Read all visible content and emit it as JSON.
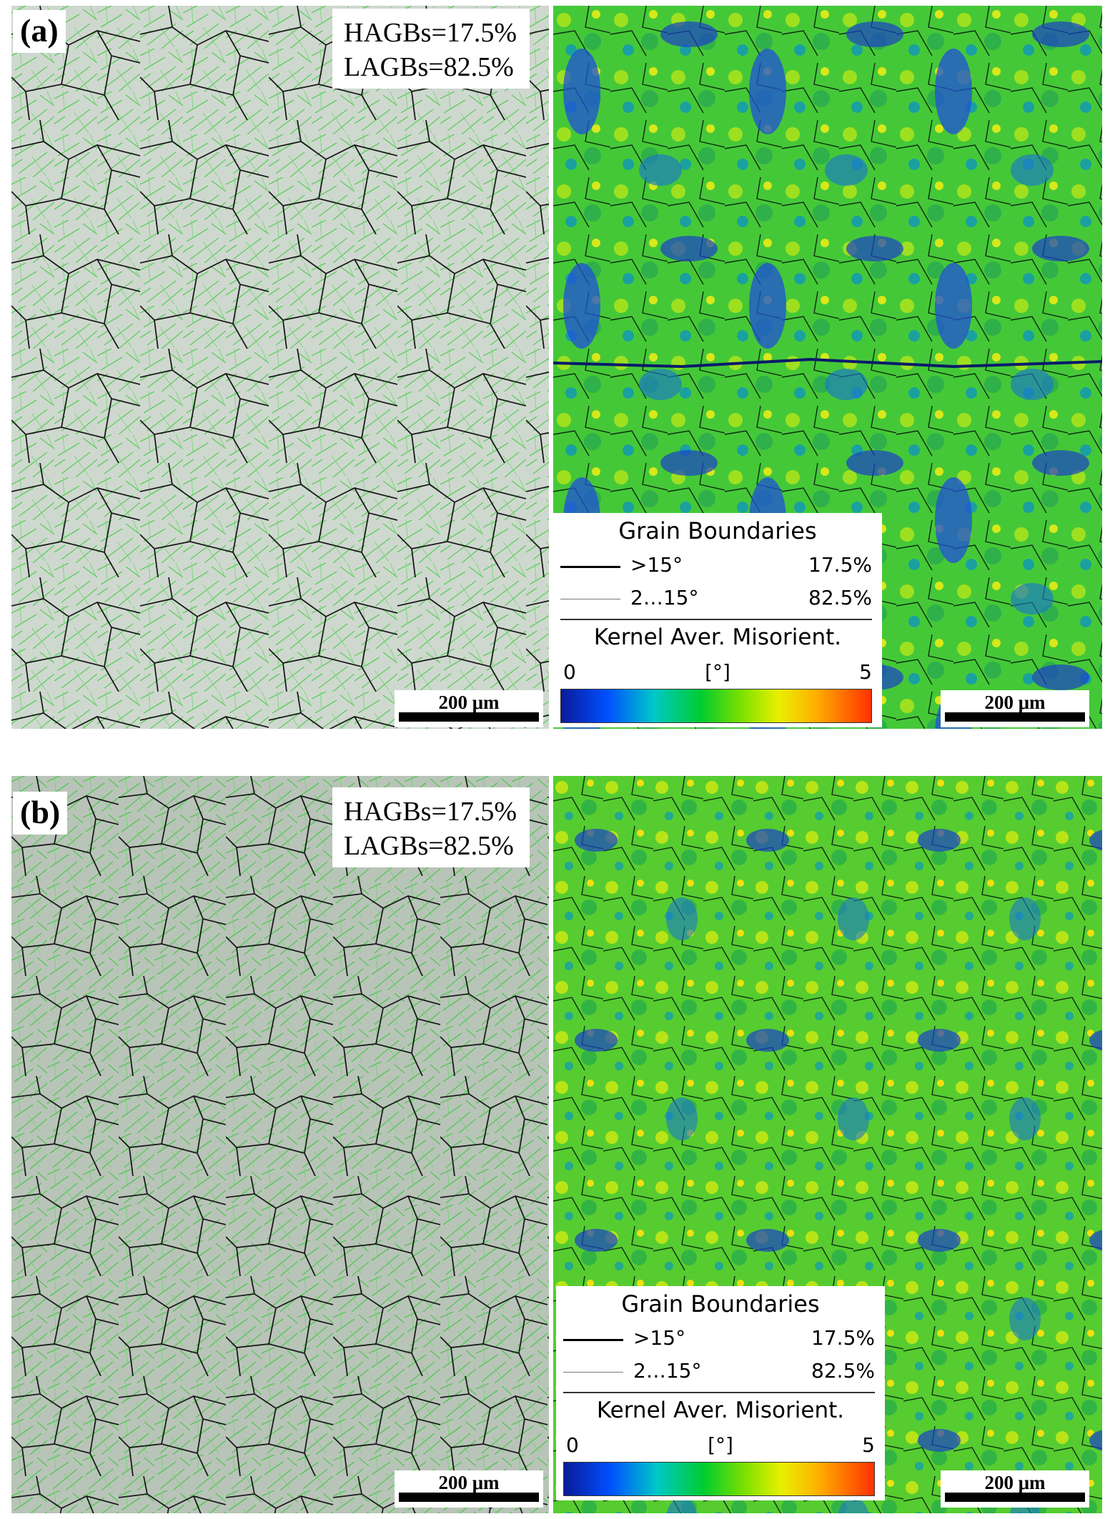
{
  "panels": [
    {
      "label": "(a)",
      "hagbs": "HAGBs=17.5%",
      "lagbs": "LAGBs=82.5%",
      "scalebar_left": "200 μm",
      "scalebar_right": "200 μm",
      "legend": {
        "title": "Grain Boundaries",
        "rows": [
          {
            "name": ">15°",
            "value": "17.5%"
          },
          {
            "name": "2…15°",
            "value": "82.5%"
          }
        ],
        "kam_title": "Kernel Aver. Misorient.",
        "kam_min": "0",
        "kam_unit": "[°]",
        "kam_max": "5"
      }
    },
    {
      "label": "(b)",
      "hagbs": "HAGBs=17.5%",
      "lagbs": "LAGBs=82.5%",
      "scalebar_left": "200 μm",
      "scalebar_right": "200 μm",
      "legend": {
        "title": "Grain Boundaries",
        "rows": [
          {
            "name": ">15°",
            "value": "17.5%"
          },
          {
            "name": "2…15°",
            "value": "82.5%"
          }
        ],
        "kam_title": "Kernel Aver. Misorient.",
        "kam_min": "0",
        "kam_unit": "[°]",
        "kam_max": "5"
      }
    }
  ],
  "colors": {
    "kam_low": "#0a1a9a",
    "kam_mid": "#00cc30",
    "kam_high": "#ff3000",
    "lagb_line": "#6cd86c",
    "hagb_line": "#000000"
  }
}
